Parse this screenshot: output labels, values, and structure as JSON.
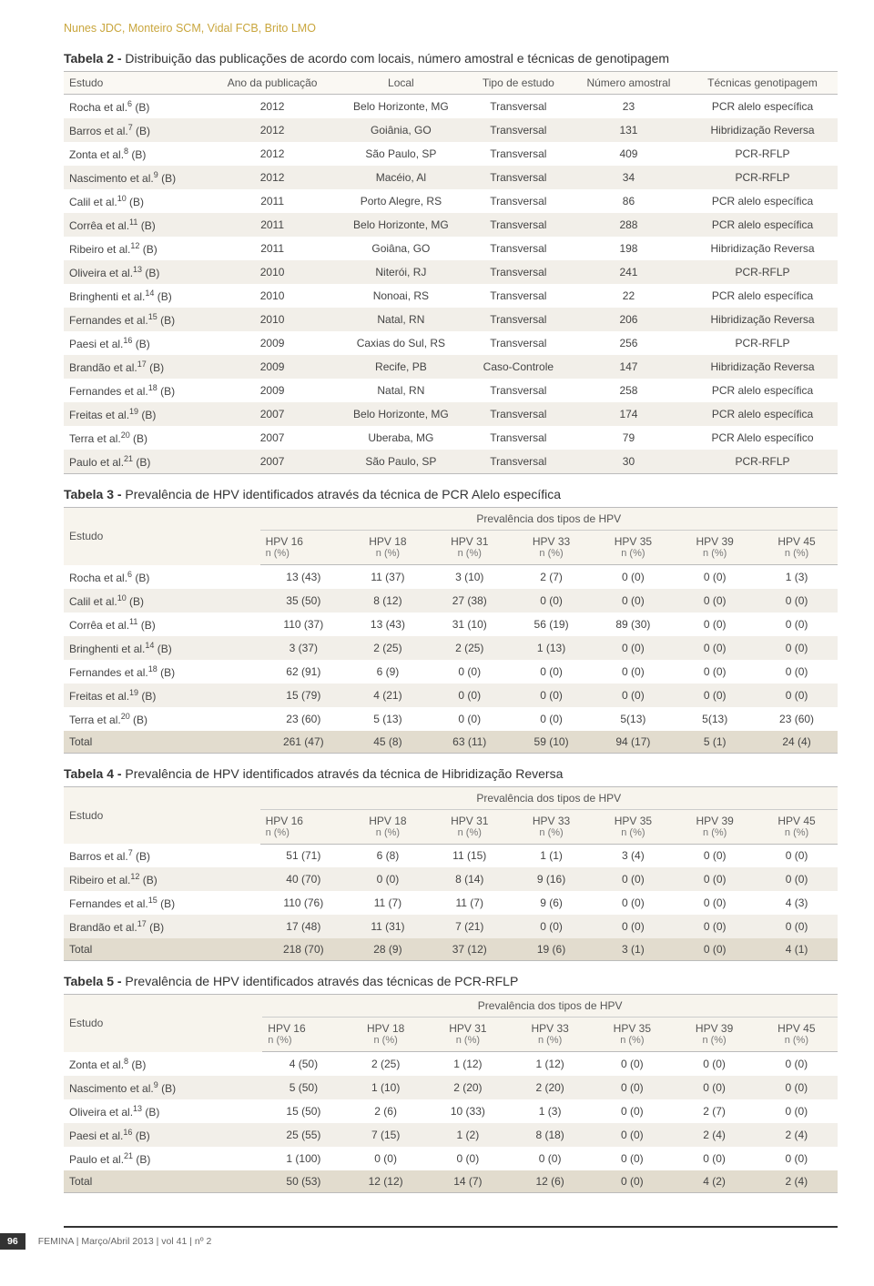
{
  "authors": "Nunes JDC, Monteiro SCM, Vidal FCB, Brito LMO",
  "table2": {
    "title_bold": "Tabela 2 -",
    "title_rest": " Distribuição das publicações de acordo com locais, número amostral e técnicas de genotipagem",
    "cols": [
      "Estudo",
      "Ano da publicação",
      "Local",
      "Tipo de estudo",
      "Número amostral",
      "Técnicas genotipagem"
    ],
    "rows": [
      [
        "Rocha et al.",
        "6",
        "(B)",
        "2012",
        "Belo Horizonte, MG",
        "Transversal",
        "23",
        "PCR alelo específica"
      ],
      [
        "Barros et al.",
        "7",
        "(B)",
        "2012",
        "Goiânia, GO",
        "Transversal",
        "131",
        "Hibridização Reversa"
      ],
      [
        "Zonta et al.",
        "8",
        "(B)",
        "2012",
        "São Paulo, SP",
        "Transversal",
        "409",
        "PCR-RFLP"
      ],
      [
        "Nascimento et al.",
        "9",
        "(B)",
        "2012",
        "Macéio, Al",
        "Transversal",
        "34",
        "PCR-RFLP"
      ],
      [
        "Calil et al.",
        "10",
        "(B)",
        "2011",
        "Porto Alegre, RS",
        "Transversal",
        "86",
        "PCR alelo específica"
      ],
      [
        "Corrêa et al.",
        "11",
        "(B)",
        "2011",
        "Belo Horizonte, MG",
        "Transversal",
        "288",
        "PCR alelo específica"
      ],
      [
        "Ribeiro et al.",
        "12",
        "(B)",
        "2011",
        "Goiâna, GO",
        "Transversal",
        "198",
        "Hibridização Reversa"
      ],
      [
        "Oliveira et al.",
        "13",
        "(B)",
        "2010",
        "Niterói, RJ",
        "Transversal",
        "241",
        "PCR-RFLP"
      ],
      [
        "Bringhenti et al.",
        "14",
        "(B)",
        "2010",
        "Nonoai, RS",
        "Transversal",
        "22",
        "PCR alelo específica"
      ],
      [
        "Fernandes et al.",
        "15",
        "(B)",
        "2010",
        "Natal, RN",
        "Transversal",
        "206",
        "Hibridização Reversa"
      ],
      [
        "Paesi et al.",
        "16",
        "(B)",
        "2009",
        "Caxias do Sul, RS",
        "Transversal",
        "256",
        "PCR-RFLP"
      ],
      [
        "Brandão et al.",
        "17",
        "(B)",
        "2009",
        "Recife, PB",
        "Caso-Controle",
        "147",
        "Hibridização Reversa"
      ],
      [
        "Fernandes et al.",
        "18",
        "(B)",
        "2009",
        "Natal, RN",
        "Transversal",
        "258",
        "PCR alelo específica"
      ],
      [
        "Freitas et al.",
        "19",
        "(B)",
        "2007",
        "Belo Horizonte, MG",
        "Transversal",
        "174",
        "PCR alelo específica"
      ],
      [
        "Terra et al.",
        "20",
        "(B)",
        "2007",
        "Uberaba, MG",
        "Transversal",
        "79",
        "PCR Alelo específico"
      ],
      [
        "Paulo et al.",
        "21",
        "(B)",
        "2007",
        "São Paulo, SP",
        "Transversal",
        "30",
        "PCR-RFLP"
      ]
    ]
  },
  "hpv_cols": [
    "HPV 16",
    "HPV 18",
    "HPV 31",
    "HPV 33",
    "HPV 35",
    "HPV 39",
    "HPV 45"
  ],
  "hpv_sub": "n (%)",
  "prev_header": "Prevalência dos tipos de HPV",
  "estudo": "Estudo",
  "table3": {
    "title_bold": "Tabela 3 -",
    "title_rest": " Prevalência de HPV identificados através da técnica de PCR Alelo específica",
    "rows": [
      [
        "Rocha et al.",
        "6",
        "(B)",
        "13 (43)",
        "11 (37)",
        "3 (10)",
        "2 (7)",
        "0 (0)",
        "0 (0)",
        "1 (3)"
      ],
      [
        "Calil et al.",
        "10",
        "(B)",
        "35 (50)",
        "8 (12)",
        "27 (38)",
        "0 (0)",
        "0 (0)",
        "0 (0)",
        "0 (0)"
      ],
      [
        "Corrêa et al.",
        "11",
        "(B)",
        "110 (37)",
        "13 (43)",
        "31 (10)",
        "56 (19)",
        "89 (30)",
        "0 (0)",
        "0 (0)"
      ],
      [
        "Bringhenti et al.",
        "14",
        "(B)",
        "3 (37)",
        "2 (25)",
        "2 (25)",
        "1 (13)",
        "0 (0)",
        "0 (0)",
        "0 (0)"
      ],
      [
        "Fernandes et al.",
        "18",
        "(B)",
        "62 (91)",
        "6 (9)",
        "0 (0)",
        "0 (0)",
        "0 (0)",
        "0 (0)",
        "0 (0)"
      ],
      [
        "Freitas et al.",
        "19",
        "(B)",
        "15 (79)",
        "4 (21)",
        "0 (0)",
        "0 (0)",
        "0 (0)",
        "0 (0)",
        "0 (0)"
      ],
      [
        "Terra et al.",
        "20",
        "(B)",
        "23 (60)",
        "5 (13)",
        "0 (0)",
        "0 (0)",
        "5(13)",
        "5(13)",
        "23 (60)"
      ]
    ],
    "total": [
      "Total",
      "261 (47)",
      "45 (8)",
      "63 (11)",
      "59 (10)",
      "94 (17)",
      "5 (1)",
      "24 (4)"
    ]
  },
  "table4": {
    "title_bold": "Tabela 4 -",
    "title_rest": " Prevalência de HPV identificados através da técnica de Hibridização Reversa",
    "rows": [
      [
        "Barros et al.",
        "7",
        "(B)",
        "51 (71)",
        "6 (8)",
        "11 (15)",
        "1 (1)",
        "3 (4)",
        "0 (0)",
        "0 (0)"
      ],
      [
        "Ribeiro et al.",
        "12",
        "(B)",
        "40 (70)",
        "0 (0)",
        "8 (14)",
        "9 (16)",
        "0 (0)",
        "0 (0)",
        "0 (0)"
      ],
      [
        "Fernandes et al.",
        "15",
        "(B)",
        "110 (76)",
        "11 (7)",
        "11 (7)",
        "9 (6)",
        "0 (0)",
        "0 (0)",
        "4 (3)"
      ],
      [
        "Brandão et al.",
        "17",
        "(B)",
        "17 (48)",
        "11 (31)",
        "7 (21)",
        "0 (0)",
        "0 (0)",
        "0 (0)",
        "0 (0)"
      ]
    ],
    "total": [
      "Total",
      "218 (70)",
      "28 (9)",
      "37 (12)",
      "19 (6)",
      "3 (1)",
      "0 (0)",
      "4 (1)"
    ]
  },
  "table5": {
    "title_bold": "Tabela 5 -",
    "title_rest": " Prevalência de HPV identificados através das técnicas de PCR-RFLP",
    "rows": [
      [
        "Zonta et al.",
        "8",
        "(B)",
        "4 (50)",
        "2 (25)",
        "1 (12)",
        "1 (12)",
        "0 (0)",
        "0 (0)",
        "0 (0)"
      ],
      [
        "Nascimento et al.",
        "9",
        "(B)",
        "5 (50)",
        "1 (10)",
        "2 (20)",
        "2 (20)",
        "0 (0)",
        "0 (0)",
        "0 (0)"
      ],
      [
        "Oliveira et al.",
        "13",
        "(B)",
        "15 (50)",
        "2 (6)",
        "10 (33)",
        "1 (3)",
        "0 (0)",
        "2 (7)",
        "0 (0)"
      ],
      [
        "Paesi et al.",
        "16",
        "(B)",
        "25 (55)",
        "7 (15)",
        "1 (2)",
        "8 (18)",
        "0 (0)",
        "2 (4)",
        "2 (4)"
      ],
      [
        "Paulo et al.",
        "21",
        "(B)",
        "1 (100)",
        "0 (0)",
        "0 (0)",
        "0 (0)",
        "0 (0)",
        "0 (0)",
        "0 (0)"
      ]
    ],
    "total": [
      "Total",
      "50 (53)",
      "12 (12)",
      "14 (7)",
      "12 (6)",
      "0 (0)",
      "4 (2)",
      "2 (4)"
    ]
  },
  "footer": {
    "page": "96",
    "journal": "FEMINA | Março/Abril 2013 | vol 41 | nº 2"
  }
}
